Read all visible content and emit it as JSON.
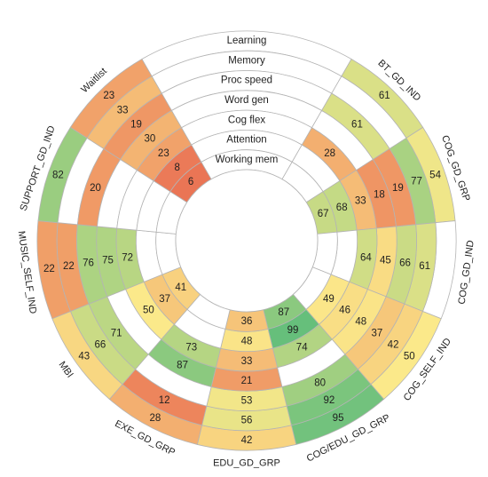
{
  "chart_data": {
    "type": "heatmap",
    "title": "",
    "layout": "radial",
    "color_scale": {
      "low": "#e8654e",
      "mid": "#fbe98a",
      "high": "#63be7b",
      "min": 0,
      "max": 100
    },
    "rings": [
      "Learning",
      "Memory",
      "Proc speed",
      "Word gen",
      "Cog flex",
      "Attention",
      "Working mem"
    ],
    "categories": [
      "BT_GD_IND",
      "COG_GD_GRP",
      "COG_GD_IND",
      "COG_SELF_IND",
      "COG/EDU_GD_GRP",
      "EDU_GD_GRP",
      "EXE_GD_GRP",
      "MBI",
      "MUSIC_SELF_IND",
      "SUPPORT_GD_IND",
      "Waitlist"
    ],
    "values": {
      "BT_GD_IND": [
        61,
        null,
        61,
        null,
        28,
        null,
        null
      ],
      "COG_GD_GRP": [
        54,
        77,
        19,
        18,
        33,
        68,
        67
      ],
      "COG_GD_IND": [
        null,
        61,
        66,
        45,
        64,
        null,
        null
      ],
      "COG_SELF_IND": [
        50,
        42,
        37,
        48,
        46,
        49,
        null
      ],
      "COG/EDU_GD_GRP": [
        95,
        92,
        80,
        null,
        74,
        99,
        87
      ],
      "EDU_GD_GRP": [
        42,
        56,
        53,
        21,
        33,
        48,
        36
      ],
      "EXE_GD_GRP": [
        28,
        12,
        null,
        87,
        73,
        null,
        null
      ],
      "MBI": [
        43,
        66,
        71,
        null,
        50,
        37,
        41
      ],
      "MUSIC_SELF_IND": [
        22,
        22,
        76,
        75,
        72,
        null,
        null
      ],
      "SUPPORT_GD_IND": [
        82,
        null,
        20,
        null,
        null,
        null,
        null
      ],
      "Waitlist": [
        23,
        33,
        19,
        30,
        23,
        8,
        6
      ]
    }
  }
}
